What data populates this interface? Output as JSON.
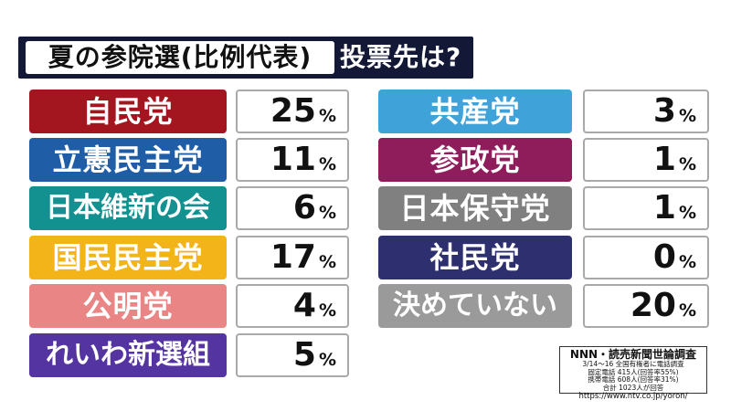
{
  "title": {
    "boxed": "夏の参院選(比例代表)",
    "question": "投票先は?"
  },
  "chart_data": {
    "type": "table",
    "title": "夏の参院選(比例代表) 投票先は?",
    "unit": "%",
    "categories": [
      "自民党",
      "立憲民主党",
      "日本維新の会",
      "国民民主党",
      "公明党",
      "れいわ新選組",
      "共産党",
      "参政党",
      "日本保守党",
      "社民党",
      "決めていない"
    ],
    "values": [
      25,
      11,
      6,
      17,
      4,
      5,
      3,
      1,
      1,
      0,
      20
    ],
    "colors": [
      "#a3151f",
      "#1f5ea6",
      "#139090",
      "#f2b418",
      "#e98585",
      "#5434a0",
      "#3fa3da",
      "#8f1d5c",
      "#808080",
      "#2e2f6e",
      "#9a9a9a"
    ]
  },
  "source": {
    "title": "NNN・読売新聞世論調査",
    "line1": "3/14〜16 全国有権者に電話調査",
    "line2": "固定電話 415人(回答率55%)",
    "line3": "携帯電話 608人(回答率31%)",
    "line4": "合計 1023人が回答",
    "url": "https://www.ntv.co.jp/yoron/"
  }
}
